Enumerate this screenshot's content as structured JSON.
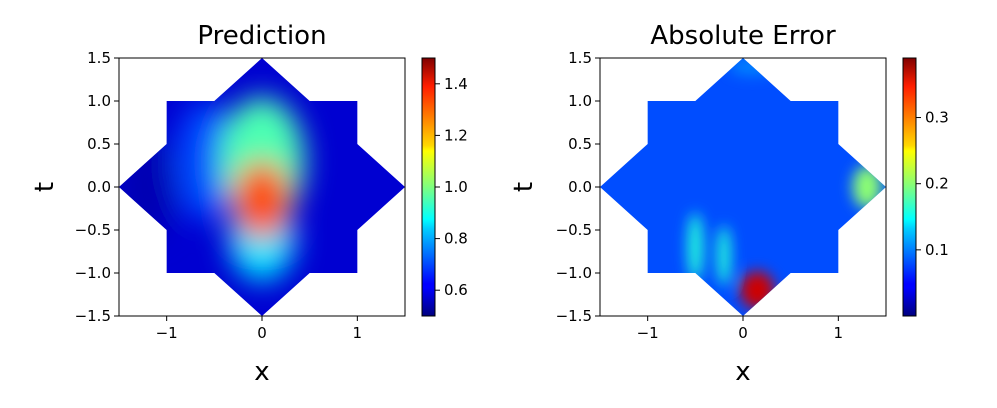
{
  "chart_data": [
    {
      "type": "heatmap",
      "title": "Prediction",
      "xlabel": "x",
      "ylabel": "t",
      "xlim": [
        -1.5,
        1.5
      ],
      "ylim": [
        -1.5,
        1.5
      ],
      "xticks": [
        "−1",
        "0",
        "1"
      ],
      "xtick_values": [
        -1,
        0,
        1
      ],
      "yticks": [
        "1.5",
        "1.0",
        "0.5",
        "0.0",
        "−0.5",
        "−1.0",
        "−1.5"
      ],
      "ytick_values": [
        1.5,
        1.0,
        0.5,
        0.0,
        -0.5,
        -1.0,
        -1.5
      ],
      "domain": "eight-pointed star: union of square |x|,|t| ≤ 1 and diamond |x|+|t| ≤ 1.5",
      "colormap": "jet",
      "colorbar": {
        "range": [
          0.5,
          1.5
        ],
        "ticks": [
          "1.4",
          "1.2",
          "1.0",
          "0.8",
          "0.6"
        ],
        "tick_values": [
          1.4,
          1.2,
          1.0,
          0.8,
          0.6
        ]
      },
      "features": [
        {
          "x": 0.0,
          "t": -0.15,
          "value": 1.3,
          "desc": "peak"
        },
        {
          "x": 0.0,
          "t": 0.3,
          "value": 0.95
        },
        {
          "x": 0.0,
          "t": -0.6,
          "value": 0.85
        },
        {
          "x": -0.6,
          "t": 0.3,
          "value": 0.7
        },
        {
          "x": -1.2,
          "t": 0.0,
          "value": 0.55
        }
      ]
    },
    {
      "type": "heatmap",
      "title": "Absolute Error",
      "xlabel": "x",
      "ylabel": "t",
      "xlim": [
        -1.5,
        1.5
      ],
      "ylim": [
        -1.5,
        1.5
      ],
      "xticks": [
        "−1",
        "0",
        "1"
      ],
      "xtick_values": [
        -1,
        0,
        1
      ],
      "yticks": [
        "1.5",
        "1.0",
        "0.5",
        "0.0",
        "−0.5",
        "−1.0",
        "−1.5"
      ],
      "ytick_values": [
        1.5,
        1.0,
        0.5,
        0.0,
        -0.5,
        -1.0,
        -1.5
      ],
      "domain": "eight-pointed star: union of square |x|,|t| ≤ 1 and diamond |x|+|t| ≤ 1.5",
      "colormap": "jet",
      "colorbar": {
        "range": [
          0.0,
          0.39
        ],
        "ticks": [
          "0.3",
          "0.2",
          "0.1"
        ],
        "tick_values": [
          0.3,
          0.2,
          0.1
        ]
      },
      "features": [
        {
          "x": 0.15,
          "t": -1.2,
          "value": 0.36,
          "desc": "max error"
        },
        {
          "x": 1.3,
          "t": 0.0,
          "value": 0.2
        },
        {
          "x": -0.5,
          "t": -0.7,
          "value": 0.16
        },
        {
          "x": -0.2,
          "t": -0.8,
          "value": 0.16
        },
        {
          "x": 0.1,
          "t": 1.4,
          "value": 0.1
        }
      ]
    }
  ]
}
